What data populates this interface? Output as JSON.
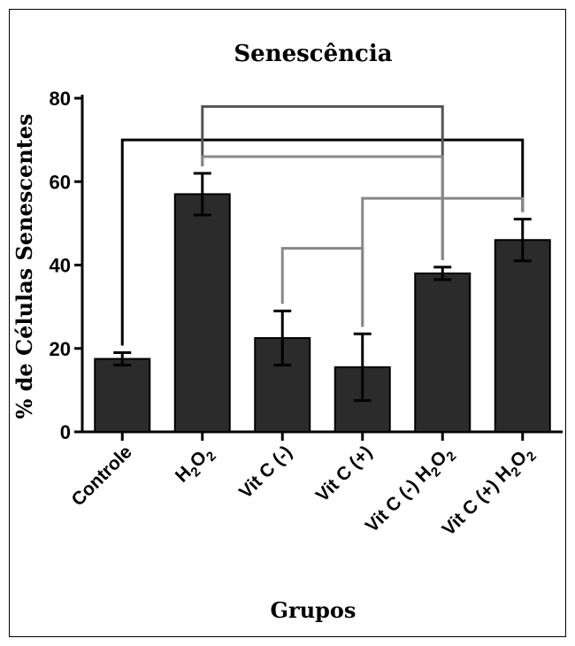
{
  "chart_data": {
    "type": "bar",
    "title": "Senescência",
    "xlabel": "Grupos",
    "ylabel": "% de Células Senescentes",
    "ylim": [
      0,
      80
    ],
    "yticks": [
      "0",
      "20",
      "40",
      "60",
      "80"
    ],
    "ytick_values": [
      0,
      20,
      40,
      60,
      80
    ],
    "categories": [
      {
        "parts": [
          {
            "t": "Controle"
          }
        ]
      },
      {
        "parts": [
          {
            "t": "H"
          },
          {
            "t": "2",
            "sub": true
          },
          {
            "t": "O"
          },
          {
            "t": "2",
            "sub": true
          }
        ]
      },
      {
        "parts": [
          {
            "t": "Vit C (-)"
          }
        ]
      },
      {
        "parts": [
          {
            "t": "Vit C (+)"
          }
        ]
      },
      {
        "parts": [
          {
            "t": "Vit C (-) H"
          },
          {
            "t": "2",
            "sub": true
          },
          {
            "t": "O"
          },
          {
            "t": "2",
            "sub": true
          }
        ]
      },
      {
        "parts": [
          {
            "t": "Vit C (+) H"
          },
          {
            "t": "2",
            "sub": true
          },
          {
            "t": "O"
          },
          {
            "t": "2",
            "sub": true
          }
        ]
      }
    ],
    "values": [
      17.5,
      57,
      22.5,
      15.5,
      38,
      46
    ],
    "error": [
      1.5,
      5,
      6.5,
      8,
      1.5,
      5
    ],
    "bar_color": "#2b2b2b",
    "grid": false,
    "comparisons": [
      {
        "from": 0,
        "to": 5,
        "y": 70,
        "color": "#000000"
      },
      {
        "from": 1,
        "to": 4,
        "y": 78,
        "color": "#555555"
      },
      {
        "from": 1,
        "to": 4,
        "y": 66,
        "color": "#888888"
      },
      {
        "from": 2,
        "to": 3,
        "y": 44,
        "color": "#888888"
      },
      {
        "from": 3,
        "to": 5,
        "y": 56,
        "color": "#888888"
      }
    ]
  }
}
